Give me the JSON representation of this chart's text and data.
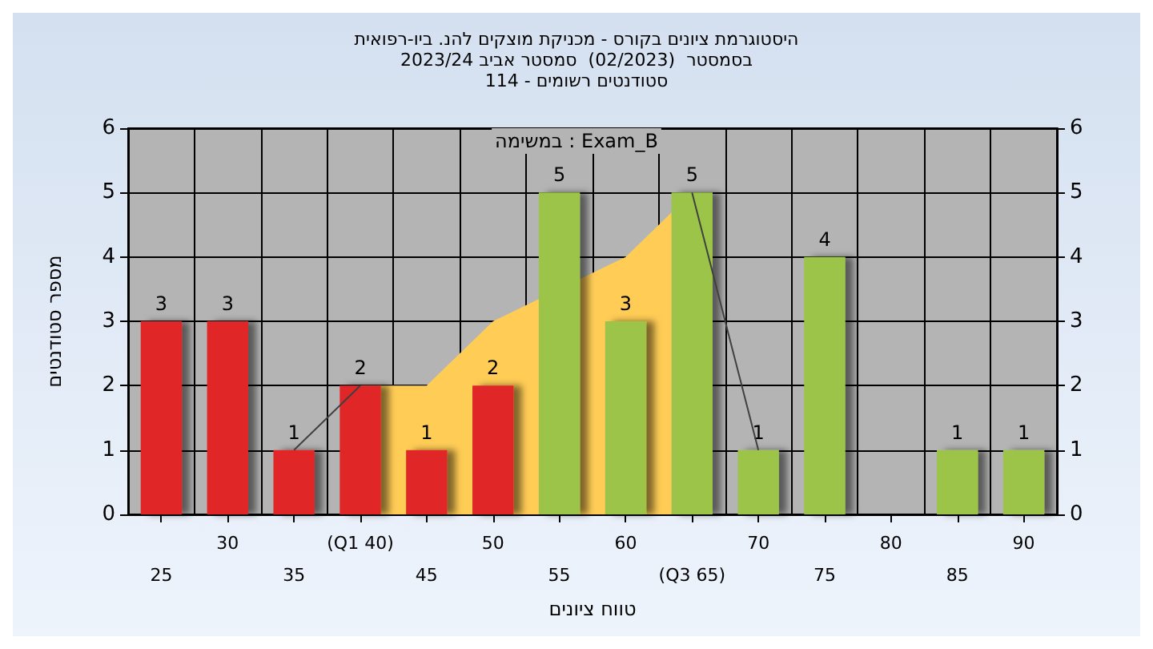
{
  "chart_data": {
    "type": "bar",
    "title": "היסטוגרמת ציונים בקורס - מכניקת מוצקים להנ. ביו-רפואית",
    "subtitle": "בסמסטר  (02/2023)  סמסטר אביב 2023/24\nסטודנטים רשומים - 114",
    "annotations": [
      "במשימה : Exam_B"
    ],
    "xlabel": "טווח ציונים",
    "ylabel": "מספר סטודנטים",
    "categories": [
      "25",
      "30",
      "35",
      "(Q1 40)",
      "45",
      "50",
      "55",
      "60",
      "(Q3 65)",
      "70",
      "75",
      "80",
      "85",
      "90"
    ],
    "series": [
      {
        "type": "area",
        "color": "#ffcc55",
        "values": [
          null,
          null,
          null,
          2,
          2,
          3,
          null,
          4,
          5,
          null,
          null,
          null,
          null,
          null
        ]
      },
      {
        "type": "line",
        "color": "#404040",
        "values": [
          null,
          null,
          1,
          2,
          null,
          null,
          null,
          null,
          5,
          1,
          null,
          null,
          null,
          null
        ]
      },
      {
        "values": [
          3,
          3,
          1,
          2,
          1,
          2,
          5,
          3,
          5,
          1,
          4,
          0,
          1,
          1
        ],
        "colors": [
          "#e02828",
          "#e02828",
          "#e02828",
          "#e02828",
          "#e02828",
          "#e02828",
          "#9cc448",
          "#9cc448",
          "#9cc448",
          "#9cc448",
          "#9cc448",
          "#9cc448",
          "#9cc448",
          "#9cc448"
        ],
        "value_labels": [
          "3",
          "3",
          "1",
          "2",
          "1",
          "2",
          "5",
          "3",
          "5",
          "1",
          "4",
          null,
          "1",
          "1"
        ]
      }
    ],
    "ylim": [
      0,
      6
    ],
    "yticks": [
      0,
      1,
      2,
      3,
      4,
      5,
      6
    ],
    "y2lim": [
      0,
      6
    ],
    "y2ticks": [
      0,
      1,
      2,
      3,
      4,
      5,
      6
    ],
    "grid": true
  }
}
